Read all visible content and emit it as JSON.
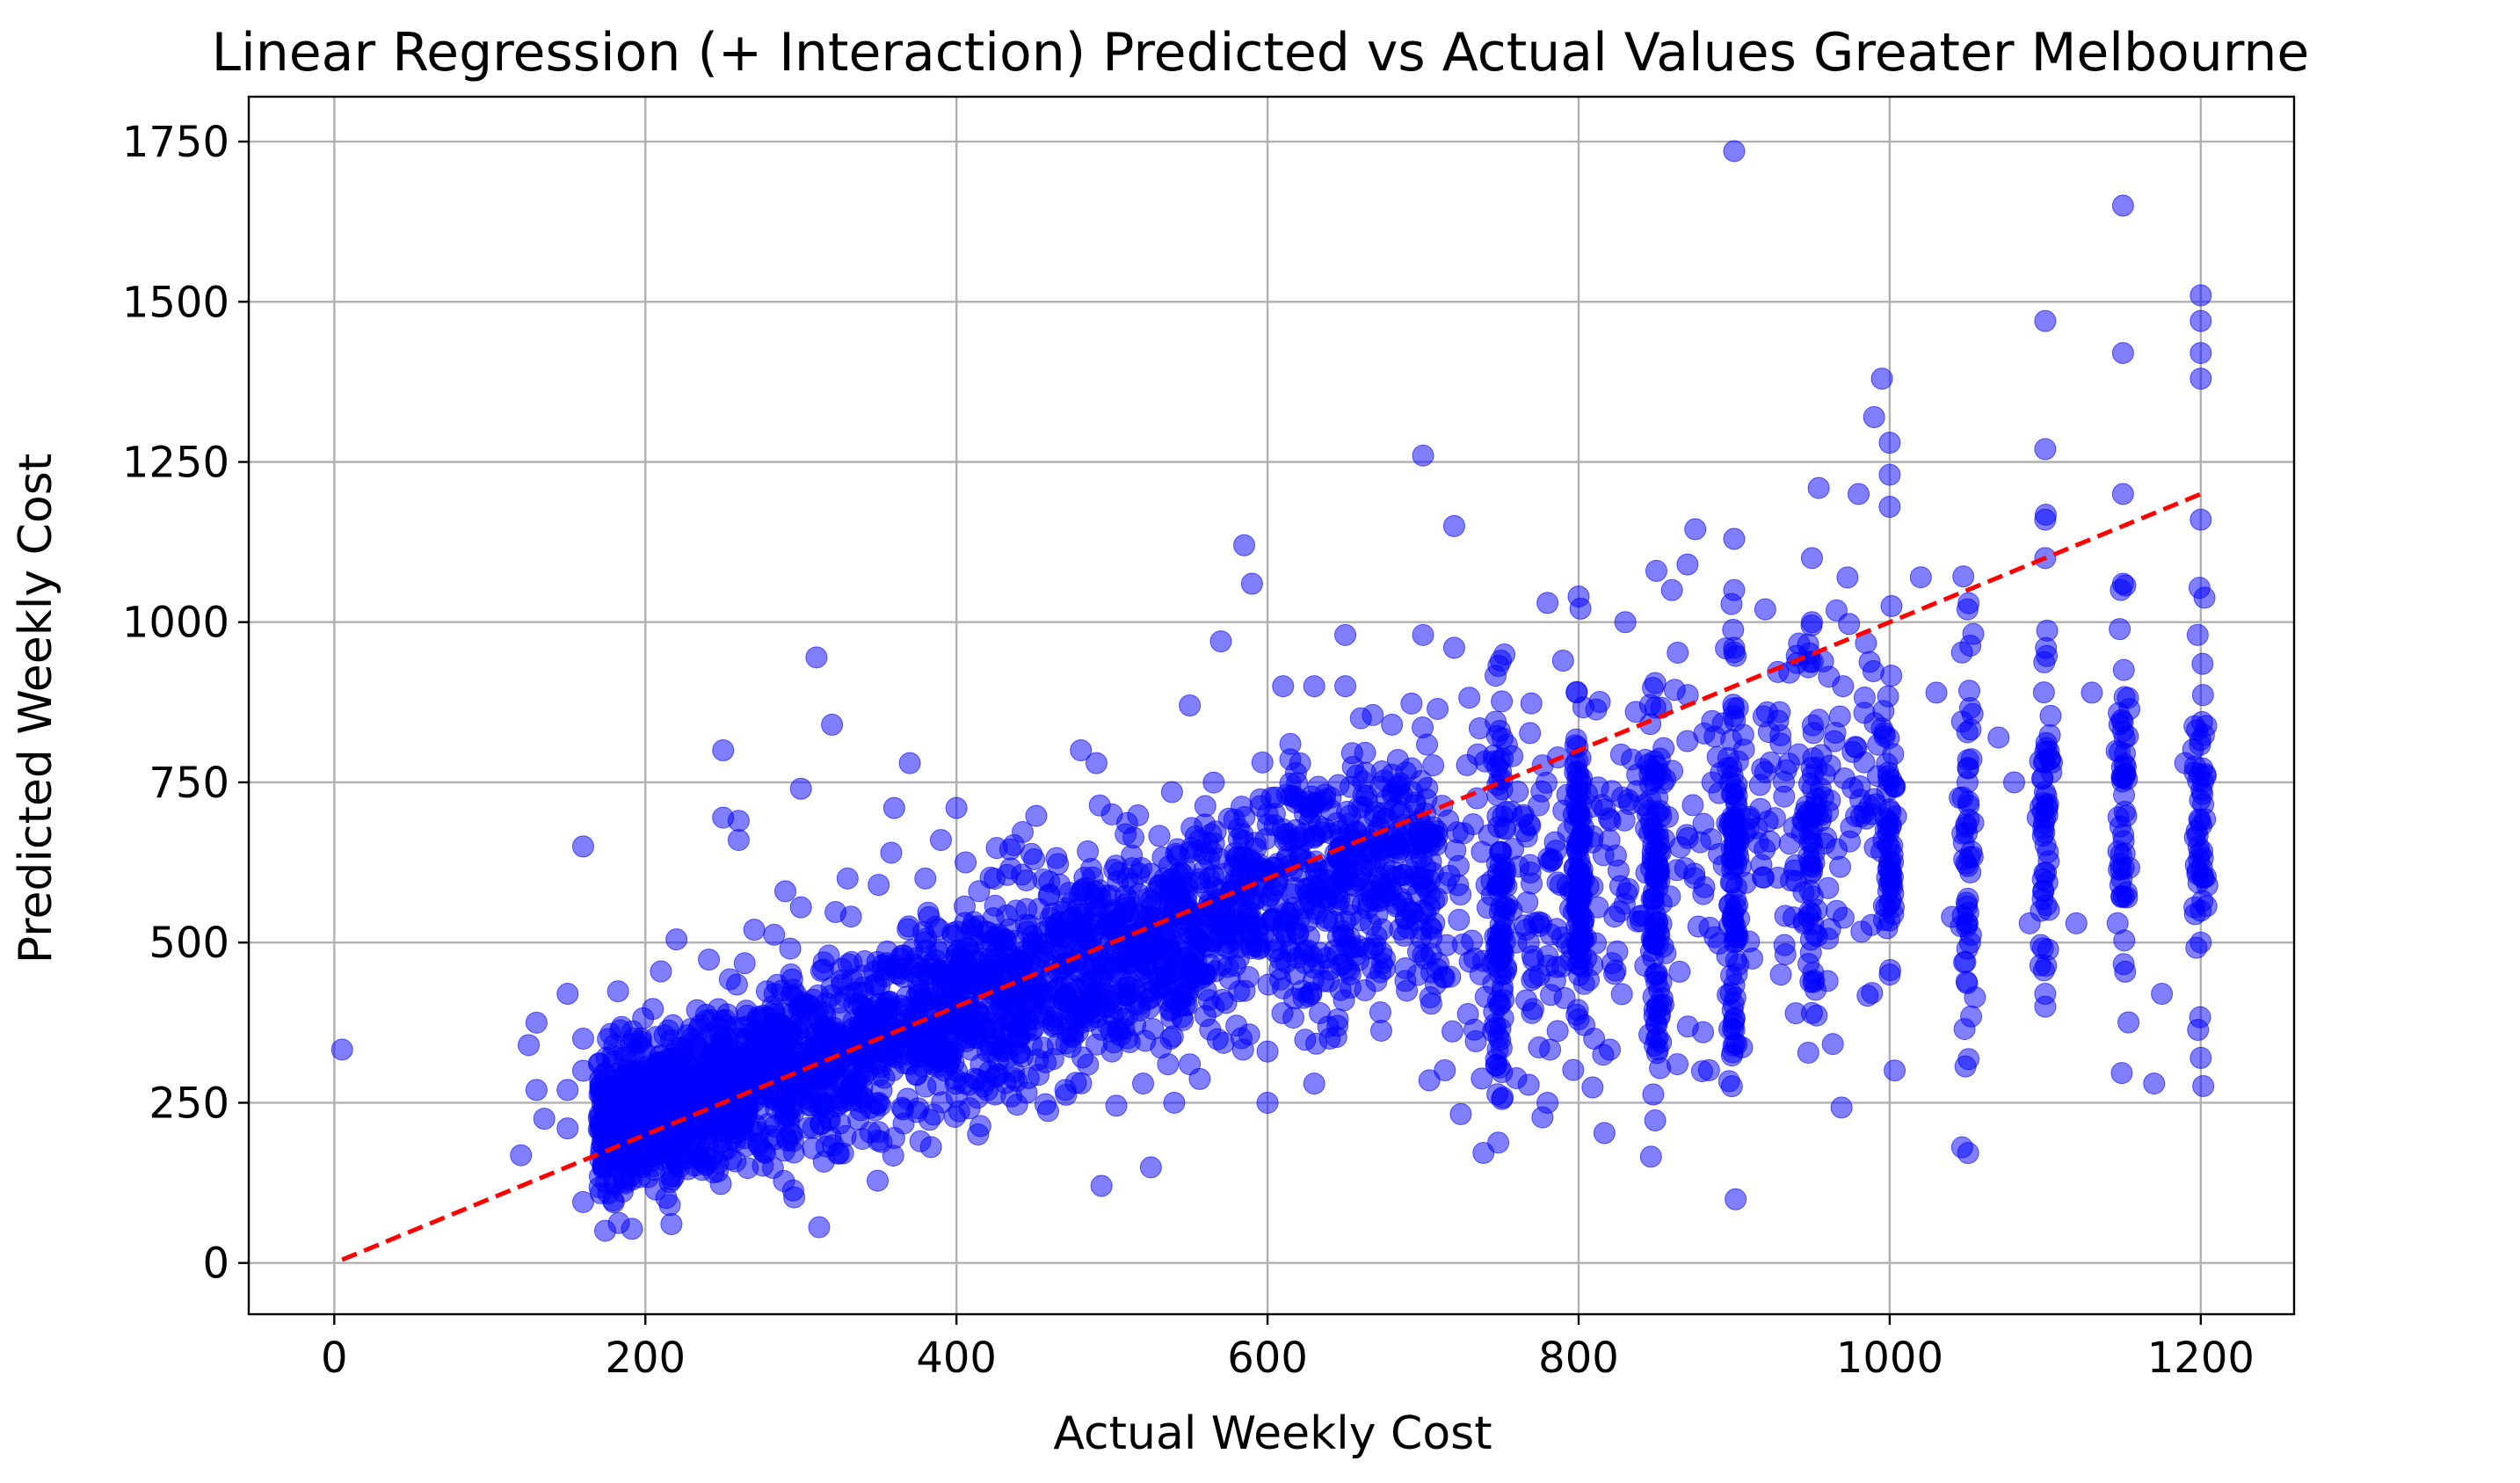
{
  "chart_data": {
    "type": "scatter",
    "title": "Linear Regression (+ Interaction) Predicted vs Actual Values Greater Melbourne",
    "xlabel": "Actual Weekly Cost",
    "ylabel": "Predicted Weekly Cost",
    "xlim": [
      -55,
      1260
    ],
    "ylim": [
      -80,
      1820
    ],
    "xticks": [
      0,
      200,
      400,
      600,
      800,
      1000,
      1200
    ],
    "yticks": [
      0,
      250,
      500,
      750,
      1000,
      1250,
      1500,
      1750
    ],
    "grid": true,
    "legend": "none",
    "point_color": "#0000ff",
    "point_alpha": 0.5,
    "reference_line": {
      "style": "dashed",
      "color": "#ff0000",
      "x": [
        5,
        1200
      ],
      "y": [
        5,
        1200
      ]
    },
    "series": [
      {
        "values": [
          [
            5,
            333
          ],
          [
            120,
            168
          ],
          [
            125,
            340
          ],
          [
            130,
            375
          ],
          [
            130,
            270
          ],
          [
            135,
            225
          ],
          [
            150,
            270
          ],
          [
            150,
            210
          ],
          [
            150,
            420
          ],
          [
            160,
            95
          ],
          [
            160,
            650
          ],
          [
            160,
            350
          ],
          [
            160,
            300
          ],
          [
            175,
            190
          ],
          [
            180,
            340
          ],
          [
            180,
            290
          ],
          [
            180,
            230
          ],
          [
            190,
            210
          ],
          [
            200,
            300
          ],
          [
            200,
            240
          ],
          [
            210,
            455
          ],
          [
            215,
            215
          ],
          [
            220,
            505
          ],
          [
            230,
            300
          ],
          [
            240,
            260
          ],
          [
            250,
            800
          ],
          [
            250,
            695
          ],
          [
            250,
            175
          ],
          [
            255,
            220
          ],
          [
            260,
            660
          ],
          [
            260,
            690
          ],
          [
            265,
            280
          ],
          [
            270,
            520
          ],
          [
            280,
            340
          ],
          [
            290,
            580
          ],
          [
            295,
            190
          ],
          [
            300,
            740
          ],
          [
            300,
            555
          ],
          [
            300,
            400
          ],
          [
            310,
            945
          ],
          [
            320,
            840
          ],
          [
            330,
            600
          ],
          [
            350,
            250
          ],
          [
            350,
            590
          ],
          [
            360,
            460
          ],
          [
            360,
            195
          ],
          [
            360,
            710
          ],
          [
            370,
            780
          ],
          [
            380,
            600
          ],
          [
            385,
            310
          ],
          [
            390,
            660
          ],
          [
            400,
            710
          ],
          [
            400,
            480
          ],
          [
            400,
            260
          ],
          [
            420,
            330
          ],
          [
            430,
            500
          ],
          [
            450,
            630
          ],
          [
            450,
            380
          ],
          [
            470,
            270
          ],
          [
            480,
            800
          ],
          [
            490,
            780
          ],
          [
            500,
            700
          ],
          [
            500,
            330
          ],
          [
            510,
            600
          ],
          [
            520,
            280
          ],
          [
            540,
            250
          ],
          [
            550,
            870
          ],
          [
            550,
            310
          ],
          [
            570,
            970
          ],
          [
            585,
            1120
          ],
          [
            590,
            1060
          ],
          [
            600,
            250
          ],
          [
            600,
            700
          ],
          [
            600,
            330
          ],
          [
            610,
            900
          ],
          [
            630,
            900
          ],
          [
            640,
            350
          ],
          [
            650,
            980
          ],
          [
            650,
            900
          ],
          [
            660,
            850
          ],
          [
            670,
            440
          ],
          [
            680,
            840
          ],
          [
            700,
            1260
          ],
          [
            700,
            980
          ],
          [
            700,
            600
          ],
          [
            700,
            550
          ],
          [
            720,
            1150
          ],
          [
            720,
            960
          ],
          [
            730,
            470
          ],
          [
            750,
            940
          ],
          [
            750,
            450
          ],
          [
            760,
            500
          ],
          [
            770,
            390
          ],
          [
            780,
            1030
          ],
          [
            780,
            250
          ],
          [
            790,
            940
          ],
          [
            800,
            1040
          ],
          [
            800,
            380
          ],
          [
            800,
            700
          ],
          [
            810,
            350
          ],
          [
            830,
            1000
          ],
          [
            850,
            1080
          ],
          [
            850,
            350
          ],
          [
            850,
            450
          ],
          [
            860,
            1050
          ],
          [
            870,
            1090
          ],
          [
            875,
            1145
          ],
          [
            880,
            360
          ],
          [
            900,
            1735
          ],
          [
            900,
            1130
          ],
          [
            900,
            1050
          ],
          [
            900,
            960
          ],
          [
            900,
            500
          ],
          [
            900,
            380
          ],
          [
            920,
            1020
          ],
          [
            930,
            450
          ],
          [
            950,
            1100
          ],
          [
            950,
            390
          ],
          [
            950,
            1000
          ],
          [
            960,
            440
          ],
          [
            970,
            900
          ],
          [
            980,
            1200
          ],
          [
            990,
            1320
          ],
          [
            995,
            1380
          ],
          [
            1000,
            1280
          ],
          [
            1000,
            1230
          ],
          [
            1000,
            1180
          ],
          [
            1000,
            450
          ],
          [
            1020,
            1070
          ],
          [
            1030,
            890
          ],
          [
            1040,
            540
          ],
          [
            1050,
            1020
          ],
          [
            1050,
            750
          ],
          [
            1050,
            530
          ],
          [
            1070,
            820
          ],
          [
            1080,
            750
          ],
          [
            1090,
            530
          ],
          [
            1100,
            1470
          ],
          [
            1100,
            1270
          ],
          [
            1100,
            1160
          ],
          [
            1100,
            1100
          ],
          [
            1100,
            400
          ],
          [
            1100,
            420
          ],
          [
            1120,
            530
          ],
          [
            1130,
            890
          ],
          [
            1150,
            1650
          ],
          [
            1150,
            1420
          ],
          [
            1150,
            1200
          ],
          [
            1150,
            1060
          ],
          [
            1150,
            830
          ],
          [
            1170,
            280
          ],
          [
            1175,
            420
          ],
          [
            1190,
            780
          ],
          [
            1200,
            1510
          ],
          [
            1200,
            1470
          ],
          [
            1200,
            1420
          ],
          [
            1200,
            1380
          ],
          [
            1200,
            1160
          ],
          [
            1200,
            320
          ],
          [
            1200,
            500
          ]
        ]
      }
    ]
  }
}
